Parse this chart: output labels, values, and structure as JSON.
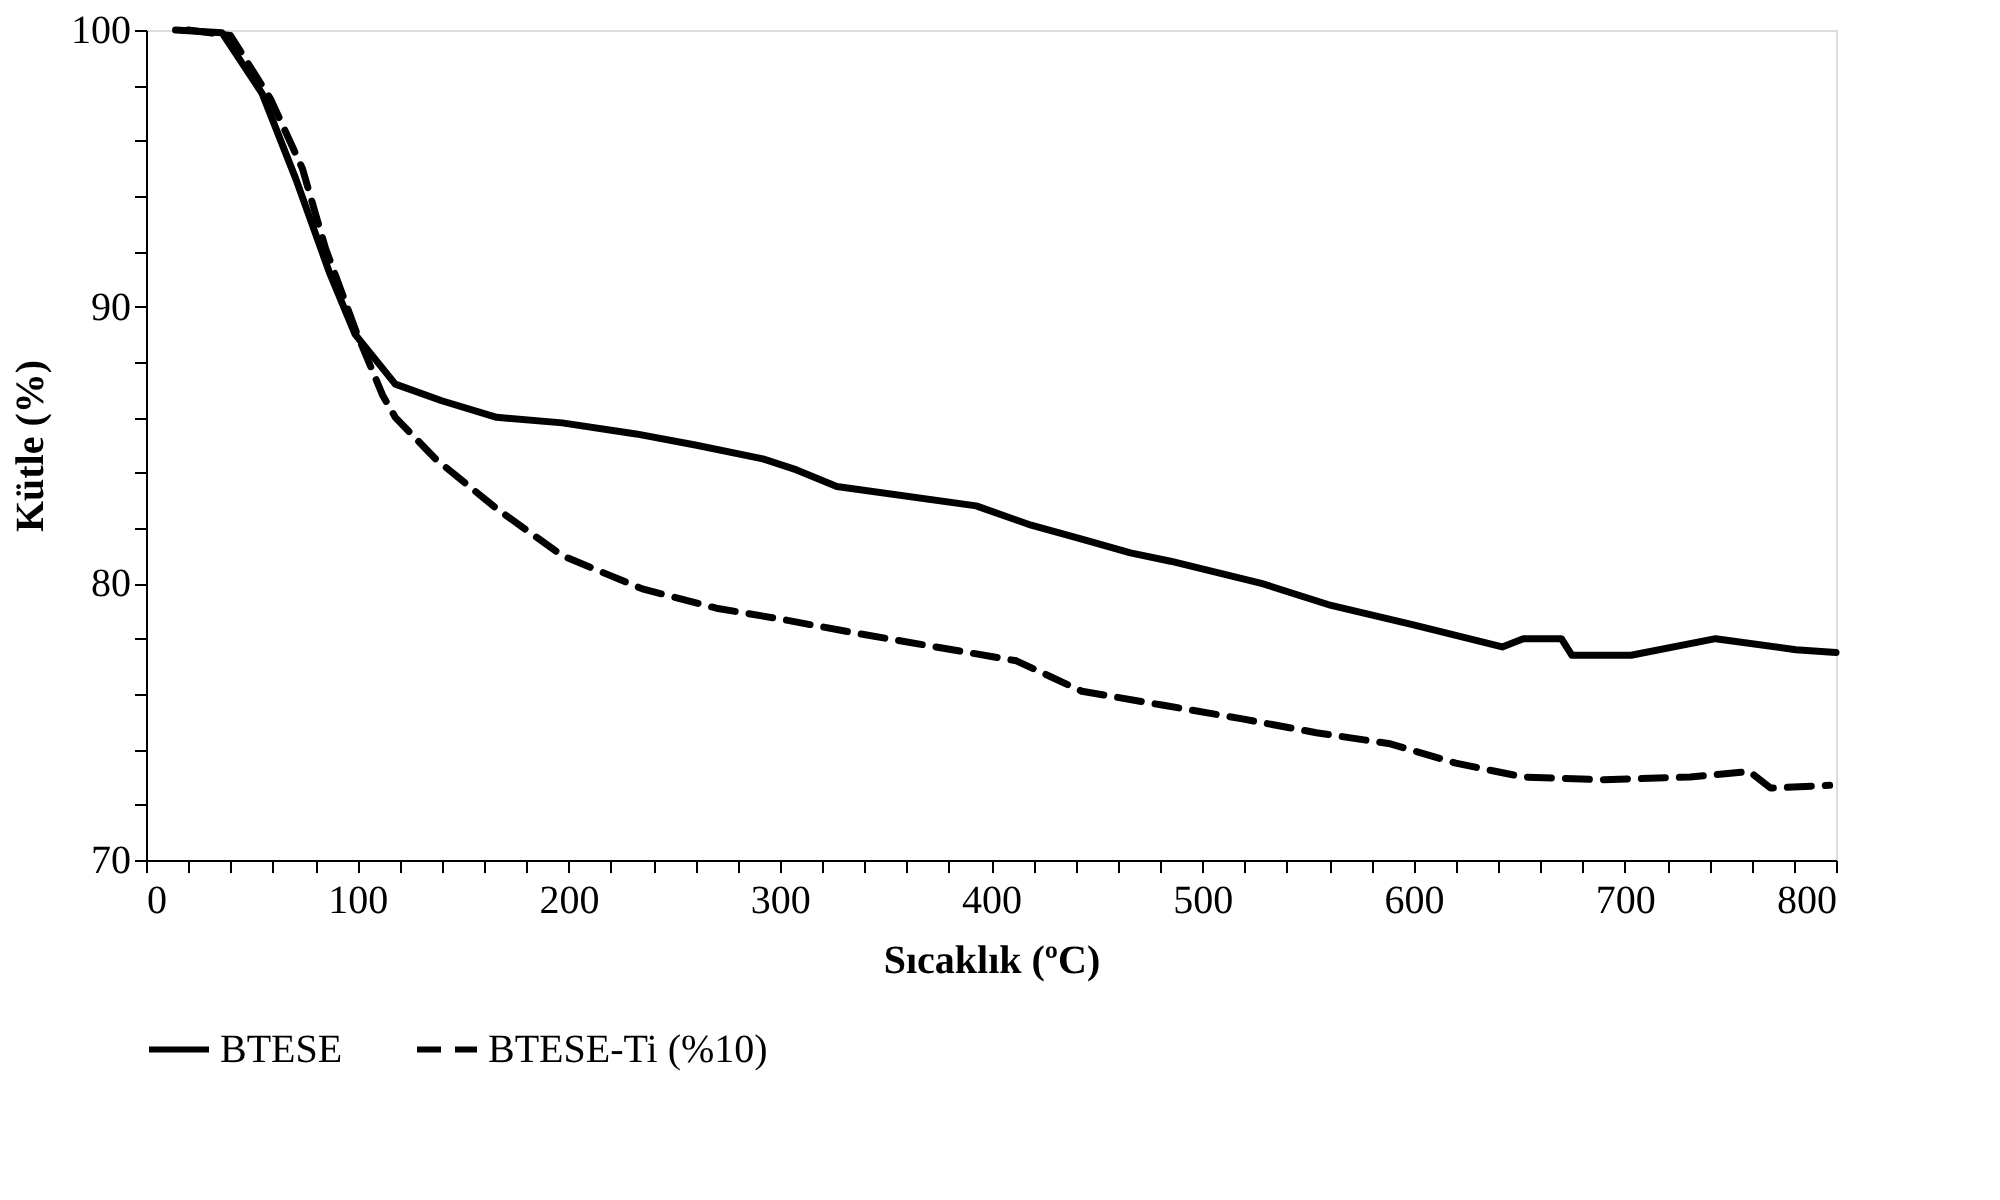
{
  "chart_data": {
    "type": "line",
    "xlabel": "Sıcaklık (ºC)",
    "ylabel": "Kütle (%)",
    "xlim": [
      0,
      800
    ],
    "ylim": [
      70,
      100
    ],
    "xticks": [
      0,
      {
        "value": 20,
        "label": null
      },
      {
        "value": 40,
        "label": null
      },
      {
        "value": 60,
        "label": null
      },
      {
        "value": 80,
        "label": null
      },
      100,
      {
        "value": 120,
        "label": null
      },
      {
        "value": 140,
        "label": null
      },
      {
        "value": 160,
        "label": null
      },
      {
        "value": 180,
        "label": null
      },
      200,
      {
        "value": 220,
        "label": null
      },
      {
        "value": 240,
        "label": null
      },
      {
        "value": 260,
        "label": null
      },
      {
        "value": 280,
        "label": null
      },
      300,
      {
        "value": 320,
        "label": null
      },
      {
        "value": 340,
        "label": null
      },
      {
        "value": 360,
        "label": null
      },
      {
        "value": 380,
        "label": null
      },
      400,
      {
        "value": 420,
        "label": null
      },
      {
        "value": 440,
        "label": null
      },
      {
        "value": 460,
        "label": null
      },
      {
        "value": 480,
        "label": null
      },
      500,
      {
        "value": 520,
        "label": null
      },
      {
        "value": 540,
        "label": null
      },
      {
        "value": 560,
        "label": null
      },
      {
        "value": 580,
        "label": null
      },
      600,
      {
        "value": 620,
        "label": null
      },
      {
        "value": 640,
        "label": null
      },
      {
        "value": 660,
        "label": null
      },
      {
        "value": 680,
        "label": null
      },
      700,
      {
        "value": 720,
        "label": null
      },
      {
        "value": 740,
        "label": null
      },
      {
        "value": 760,
        "label": null
      },
      {
        "value": 780,
        "label": null
      },
      800
    ],
    "yticks": [
      70,
      {
        "value": 72,
        "label": null
      },
      {
        "value": 74,
        "label": null
      },
      {
        "value": 76,
        "label": null
      },
      {
        "value": 78,
        "label": null
      },
      80,
      {
        "value": 82,
        "label": null
      },
      {
        "value": 84,
        "label": null
      },
      {
        "value": 86,
        "label": null
      },
      {
        "value": 88,
        "label": null
      },
      90,
      {
        "value": 92,
        "label": null
      },
      {
        "value": 94,
        "label": null
      },
      {
        "value": 96,
        "label": null
      },
      {
        "value": 98,
        "label": null
      },
      100
    ],
    "grid": false,
    "legend": "bottom",
    "marker": "none",
    "series": [
      {
        "name": "BTESE",
        "color": "#000000",
        "line_style": "solid",
        "x": [
          14,
          36,
          55,
          71,
          87,
          99,
          118,
          140,
          166,
          197,
          232,
          260,
          292,
          308,
          327,
          393,
          419,
          443,
          466,
          485,
          528,
          561,
          600,
          642,
          652,
          670,
          675,
          703,
          743,
          781,
          800
        ],
        "values": [
          100,
          99.9,
          97.7,
          94.6,
          91.2,
          89,
          87.2,
          86.6,
          86,
          85.8,
          85.4,
          85,
          84.5,
          84.1,
          83.5,
          82.8,
          82.1,
          81.6,
          81.1,
          80.8,
          80,
          79.2,
          78.5,
          77.7,
          78,
          78,
          77.4,
          77.4,
          78,
          77.6,
          77.5
        ]
      },
      {
        "name": "BTESE-Ti (%10)",
        "color": "#000000",
        "line_style": "dashed",
        "x": [
          20,
          40,
          59,
          74,
          85,
          100,
          112,
          118,
          137,
          166,
          197,
          235,
          270,
          301,
          336,
          374,
          412,
          443,
          481,
          519,
          554,
          589,
          620,
          652,
          689,
          731,
          759,
          769,
          797
        ],
        "values": [
          100,
          99.8,
          97.5,
          95,
          92.1,
          89,
          86.8,
          86,
          84.5,
          82.7,
          81,
          79.8,
          79.1,
          78.7,
          78.2,
          77.7,
          77.2,
          76.1,
          75.6,
          75.1,
          74.6,
          74.2,
          73.5,
          73,
          72.9,
          73,
          73.2,
          72.6,
          72.7
        ]
      }
    ]
  }
}
